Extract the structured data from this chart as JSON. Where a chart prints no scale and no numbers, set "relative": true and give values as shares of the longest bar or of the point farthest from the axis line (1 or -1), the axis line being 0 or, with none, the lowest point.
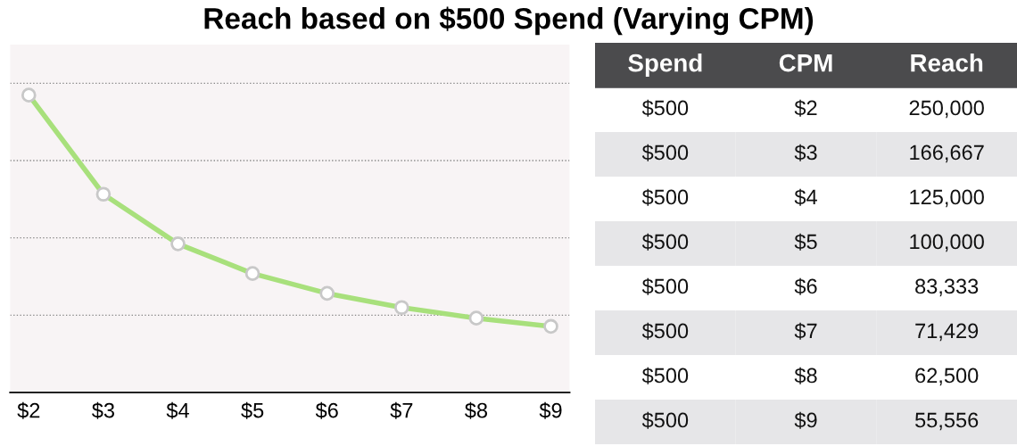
{
  "chart_data": [
    {
      "type": "line",
      "title": "Reach based on $500 Spend (Varying CPM)",
      "categories": [
        "$2",
        "$3",
        "$4",
        "$5",
        "$6",
        "$7",
        "$8",
        "$9"
      ],
      "relative": true,
      "series": [
        {
          "color": "#a8e07c",
          "values": [
            1,
            0.6667,
            0.5,
            0.4,
            0.3333,
            0.2857,
            0.25,
            0.2222
          ]
        }
      ],
      "ref_lines": [
        {
          "axis": "y",
          "value": 0.26,
          "color": "#888888",
          "line_style": "dotted"
        },
        {
          "axis": "y",
          "value": 0.52,
          "color": "#888888",
          "line_style": "dotted"
        },
        {
          "axis": "y",
          "value": 0.78,
          "color": "#888888",
          "line_style": "dotted"
        },
        {
          "axis": "y",
          "value": 1.04,
          "color": "#888888",
          "line_style": "dotted"
        }
      ],
      "tick_labels": "x",
      "marker": "circle",
      "line_style": "solid"
    },
    {
      "type": "heatmap",
      "categories": [
        "Spend",
        "Reach"
      ],
      "ylabel": "CPM",
      "y_categories": [
        "$2",
        "$3",
        "$4",
        "$5",
        "$6",
        "$7",
        "$8",
        "$9"
      ],
      "cells": [
        [
          null,
          null
        ],
        [
          null,
          null
        ],
        [
          null,
          null
        ],
        [
          null,
          null
        ],
        [
          null,
          null
        ],
        [
          null,
          null
        ],
        [
          null,
          null
        ],
        [
          null,
          null
        ]
      ],
      "cell_labels": [
        [
          "$500",
          "250,000"
        ],
        [
          "$500",
          "166,667"
        ],
        [
          "$500",
          "125,000"
        ],
        [
          "$500",
          "100,000"
        ],
        [
          "$500",
          "83,333"
        ],
        [
          "$500",
          "71,429"
        ],
        [
          "$500",
          "62,500"
        ],
        [
          "$500",
          "55,556"
        ]
      ]
    }
  ]
}
